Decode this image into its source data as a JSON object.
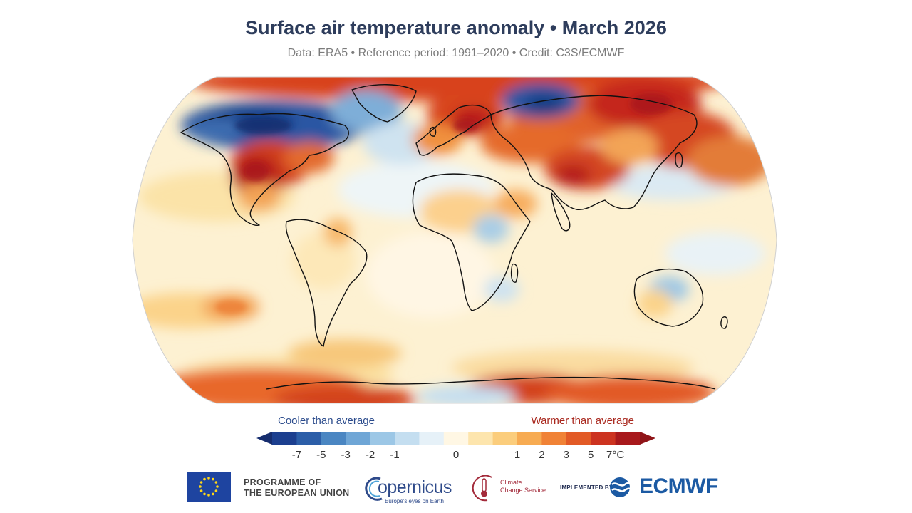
{
  "title": "Surface air temperature anomaly • March 2026",
  "subtitle": "Data: ERA5 • Reference period: 1991–2020 • Credit: C3S/ECMWF",
  "legend": {
    "cooler_label": "Cooler than average",
    "warmer_label": "Warmer than average",
    "ticks": [
      "-7",
      "-5",
      "-3",
      "-2",
      "-1",
      "0",
      "1",
      "2",
      "3",
      "5",
      "7°C"
    ],
    "colors": [
      "#1c3f8f",
      "#2c5ea8",
      "#4a86c2",
      "#6fa6d6",
      "#9cc7e6",
      "#c4def0",
      "#e6f1f8",
      "#fff7e4",
      "#fde5ad",
      "#fbcd7c",
      "#f7ab52",
      "#f08236",
      "#e25a26",
      "#cc3320",
      "#a8191c"
    ],
    "cool_arrow_color": "#162d6e",
    "warm_arrow_color": "#8f1418"
  },
  "map": {
    "projection": "Robinson",
    "ocean_base_color": "#fdf1d2",
    "coastline_color": "#111111"
  },
  "footer": {
    "eu_line1": "PROGRAMME OF",
    "eu_line2": "THE EUROPEAN UNION",
    "copernicus_word": "opernicus",
    "copernicus_tagline": "Europe's eyes on Earth",
    "c3s_line1": "Climate",
    "c3s_line2": "Change Service",
    "implemented_by": "IMPLEMENTED BY",
    "ecmwf_word": "ECMWF"
  }
}
